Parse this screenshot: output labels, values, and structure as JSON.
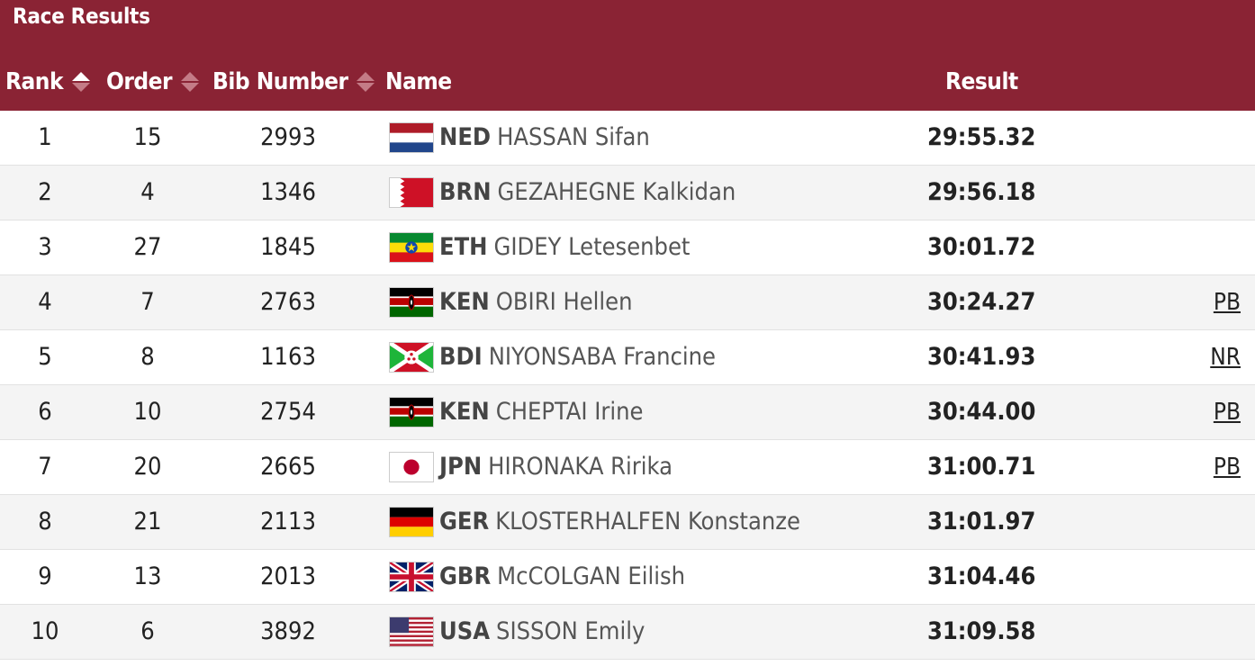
{
  "header": {
    "title": "Race Results",
    "columns": {
      "rank": "Rank",
      "order": "Order",
      "bib": "Bib Number",
      "name": "Name",
      "result": "Result"
    }
  },
  "rows": [
    {
      "rank": "1",
      "order": "15",
      "bib": "2993",
      "noc": "NED",
      "name": "HASSAN Sifan",
      "result": "29:55.32",
      "note": "",
      "flag": "ned-flag-icon"
    },
    {
      "rank": "2",
      "order": "4",
      "bib": "1346",
      "noc": "BRN",
      "name": "GEZAHEGNE Kalkidan",
      "result": "29:56.18",
      "note": "",
      "flag": "brn-flag-icon"
    },
    {
      "rank": "3",
      "order": "27",
      "bib": "1845",
      "noc": "ETH",
      "name": "GIDEY Letesenbet",
      "result": "30:01.72",
      "note": "",
      "flag": "eth-flag-icon"
    },
    {
      "rank": "4",
      "order": "7",
      "bib": "2763",
      "noc": "KEN",
      "name": "OBIRI Hellen",
      "result": "30:24.27",
      "note": "PB",
      "flag": "ken-flag-icon"
    },
    {
      "rank": "5",
      "order": "8",
      "bib": "1163",
      "noc": "BDI",
      "name": "NIYONSABA Francine",
      "result": "30:41.93",
      "note": "NR",
      "flag": "bdi-flag-icon"
    },
    {
      "rank": "6",
      "order": "10",
      "bib": "2754",
      "noc": "KEN",
      "name": "CHEPTAI Irine",
      "result": "30:44.00",
      "note": "PB",
      "flag": "ken-flag-icon"
    },
    {
      "rank": "7",
      "order": "20",
      "bib": "2665",
      "noc": "JPN",
      "name": "HIRONAKA Ririka",
      "result": "31:00.71",
      "note": "PB",
      "flag": "jpn-flag-icon"
    },
    {
      "rank": "8",
      "order": "21",
      "bib": "2113",
      "noc": "GER",
      "name": "KLOSTERHALFEN Konstanze",
      "result": "31:01.97",
      "note": "",
      "flag": "ger-flag-icon"
    },
    {
      "rank": "9",
      "order": "13",
      "bib": "2013",
      "noc": "GBR",
      "name": "McCOLGAN Eilish",
      "result": "31:04.46",
      "note": "",
      "flag": "gbr-flag-icon"
    },
    {
      "rank": "10",
      "order": "6",
      "bib": "3892",
      "noc": "USA",
      "name": "SISSON Emily",
      "result": "31:09.58",
      "note": "",
      "flag": "usa-flag-icon"
    }
  ],
  "colors": {
    "header_bg": "#8a2334",
    "row_alt_bg": "#f4f4f4"
  }
}
